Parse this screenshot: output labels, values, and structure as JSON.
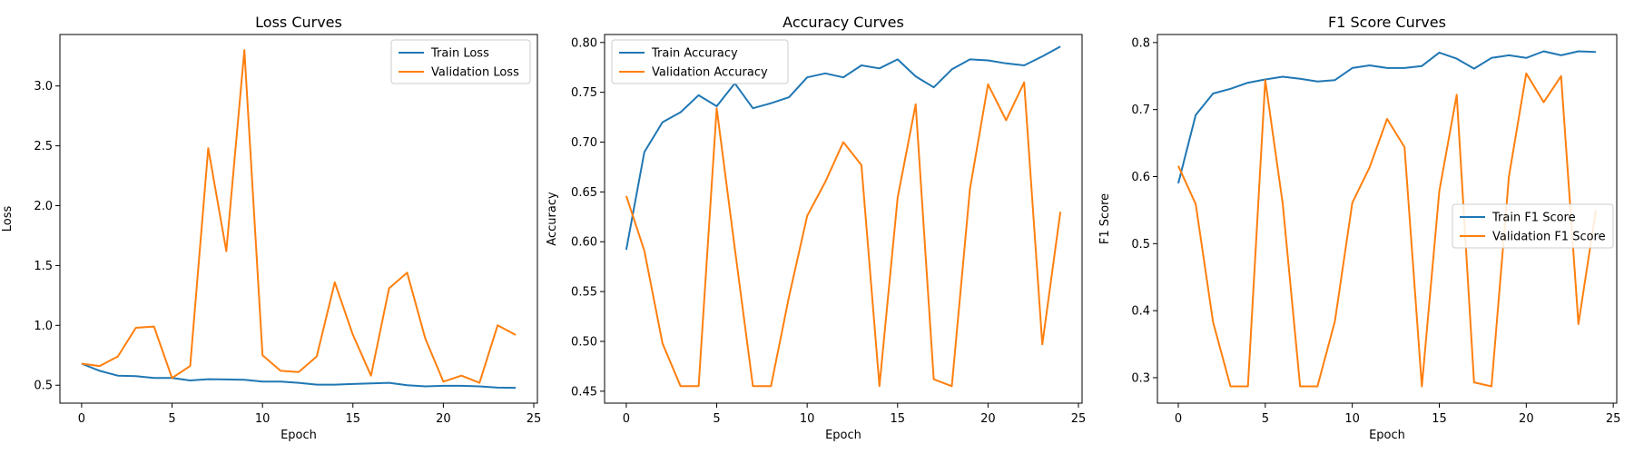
{
  "colors": {
    "train": "#1f77b4",
    "validation": "#ff7f0e"
  },
  "chart_data": [
    {
      "type": "line",
      "title": "Loss Curves",
      "xlabel": "Epoch",
      "ylabel": "Loss",
      "xlim": [
        -1.2,
        25.2
      ],
      "ylim": [
        0.35,
        3.43
      ],
      "xticks": [
        0,
        5,
        10,
        15,
        20,
        25
      ],
      "yticks": [
        0.5,
        1.0,
        1.5,
        2.0,
        2.5,
        3.0
      ],
      "ytick_labels": [
        "0.5",
        "1.0",
        "1.5",
        "2.0",
        "2.5",
        "3.0"
      ],
      "legend_position": "top-right",
      "x": [
        0,
        1,
        2,
        3,
        4,
        5,
        6,
        7,
        8,
        9,
        10,
        11,
        12,
        13,
        14,
        15,
        16,
        17,
        18,
        19,
        20,
        21,
        22,
        23,
        24
      ],
      "series": [
        {
          "name": "Train Loss",
          "color": "#1f77b4",
          "values": [
            0.68,
            0.62,
            0.58,
            0.575,
            0.56,
            0.56,
            0.54,
            0.55,
            0.548,
            0.545,
            0.53,
            0.53,
            0.52,
            0.505,
            0.505,
            0.51,
            0.515,
            0.52,
            0.5,
            0.49,
            0.495,
            0.495,
            0.49,
            0.48,
            0.478
          ]
        },
        {
          "name": "Validation Loss",
          "color": "#ff7f0e",
          "values": [
            0.68,
            0.66,
            0.74,
            0.98,
            0.99,
            0.56,
            0.66,
            2.48,
            1.62,
            3.3,
            0.75,
            0.62,
            0.61,
            0.74,
            1.36,
            0.92,
            0.58,
            1.31,
            1.44,
            0.89,
            0.53,
            0.58,
            0.52,
            1.0,
            0.92
          ]
        }
      ]
    },
    {
      "type": "line",
      "title": "Accuracy Curves",
      "xlabel": "Epoch",
      "ylabel": "Accuracy",
      "xlim": [
        -1.2,
        25.2
      ],
      "ylim": [
        0.438,
        0.808
      ],
      "xticks": [
        0,
        5,
        10,
        15,
        20,
        25
      ],
      "yticks": [
        0.45,
        0.5,
        0.55,
        0.6,
        0.65,
        0.7,
        0.75,
        0.8
      ],
      "ytick_labels": [
        "0.45",
        "0.50",
        "0.55",
        "0.60",
        "0.65",
        "0.70",
        "0.75",
        "0.80"
      ],
      "legend_position": "top-left",
      "x": [
        0,
        1,
        2,
        3,
        4,
        5,
        6,
        7,
        8,
        9,
        10,
        11,
        12,
        13,
        14,
        15,
        16,
        17,
        18,
        19,
        20,
        21,
        22,
        23,
        24
      ],
      "series": [
        {
          "name": "Train Accuracy",
          "color": "#1f77b4",
          "values": [
            0.592,
            0.69,
            0.72,
            0.73,
            0.747,
            0.736,
            0.759,
            0.734,
            0.739,
            0.745,
            0.765,
            0.769,
            0.765,
            0.777,
            0.774,
            0.783,
            0.766,
            0.755,
            0.773,
            0.783,
            0.782,
            0.779,
            0.777,
            0.786,
            0.796
          ]
        },
        {
          "name": "Validation Accuracy",
          "color": "#ff7f0e",
          "values": [
            0.646,
            0.591,
            0.498,
            0.455,
            0.455,
            0.734,
            0.593,
            0.455,
            0.455,
            0.545,
            0.626,
            0.66,
            0.7,
            0.677,
            0.455,
            0.644,
            0.738,
            0.462,
            0.455,
            0.653,
            0.758,
            0.722,
            0.76,
            0.497,
            0.63
          ]
        }
      ]
    },
    {
      "type": "line",
      "title": "F1 Score Curves",
      "xlabel": "Epoch",
      "ylabel": "F1 Score",
      "xlim": [
        -1.2,
        25.2
      ],
      "ylim": [
        0.262,
        0.812
      ],
      "xticks": [
        0,
        5,
        10,
        15,
        20,
        25
      ],
      "yticks": [
        0.3,
        0.4,
        0.5,
        0.6,
        0.7,
        0.8
      ],
      "ytick_labels": [
        "0.3",
        "0.4",
        "0.5",
        "0.6",
        "0.7",
        "0.8"
      ],
      "legend_position": "center-right",
      "x": [
        0,
        1,
        2,
        3,
        4,
        5,
        6,
        7,
        8,
        9,
        10,
        11,
        12,
        13,
        14,
        15,
        16,
        17,
        18,
        19,
        20,
        21,
        22,
        23,
        24
      ],
      "series": [
        {
          "name": "Train F1 Score",
          "color": "#1f77b4",
          "values": [
            0.59,
            0.692,
            0.724,
            0.731,
            0.74,
            0.745,
            0.749,
            0.746,
            0.742,
            0.744,
            0.762,
            0.766,
            0.762,
            0.762,
            0.765,
            0.785,
            0.776,
            0.761,
            0.777,
            0.781,
            0.777,
            0.787,
            0.781,
            0.787,
            0.786
          ]
        },
        {
          "name": "Validation F1 Score",
          "color": "#ff7f0e",
          "values": [
            0.616,
            0.559,
            0.383,
            0.287,
            0.287,
            0.744,
            0.56,
            0.287,
            0.287,
            0.384,
            0.561,
            0.614,
            0.686,
            0.644,
            0.287,
            0.578,
            0.722,
            0.293,
            0.287,
            0.6,
            0.754,
            0.711,
            0.75,
            0.38,
            0.55
          ]
        }
      ]
    }
  ]
}
